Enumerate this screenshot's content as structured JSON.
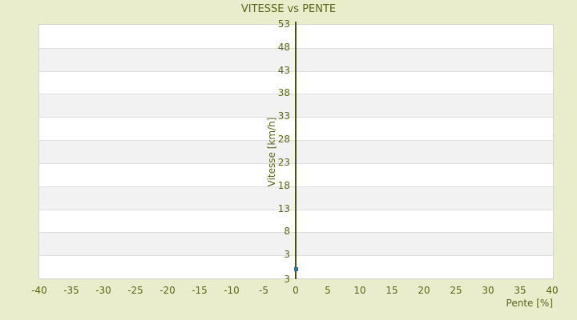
{
  "colors": {
    "background": "#e9edcc",
    "text": "#5c6516",
    "axis_line": "#47520e",
    "plot_border": "#d5d5d5",
    "grid_line": "#dedede",
    "band_light": "#ffffff",
    "band_dark": "#f2f2f2",
    "point": "#1f77b4"
  },
  "chart_data": {
    "type": "scatter",
    "title": "VITESSE vs PENTE",
    "xlabel": "Pente [%]",
    "ylabel": "Vitesse [km/h]",
    "xlim": [
      -40,
      40
    ],
    "ylim": [
      -2,
      53
    ],
    "x_ticks": [
      -40,
      -35,
      -30,
      -25,
      -20,
      -15,
      -10,
      -5,
      0,
      5,
      10,
      15,
      20,
      25,
      30,
      35,
      40
    ],
    "y_ticks": [
      53,
      48,
      43,
      38,
      33,
      28,
      23,
      18,
      13,
      8,
      3
    ],
    "y_axis_min_edge_label": "3",
    "grid": "horizontal-bands",
    "legend": "none",
    "zero_axis_line_x": 0,
    "series": [
      {
        "name": "Vitesse",
        "color": "#1f77b4",
        "points": [
          {
            "x": 0,
            "y": 0
          }
        ]
      }
    ]
  }
}
